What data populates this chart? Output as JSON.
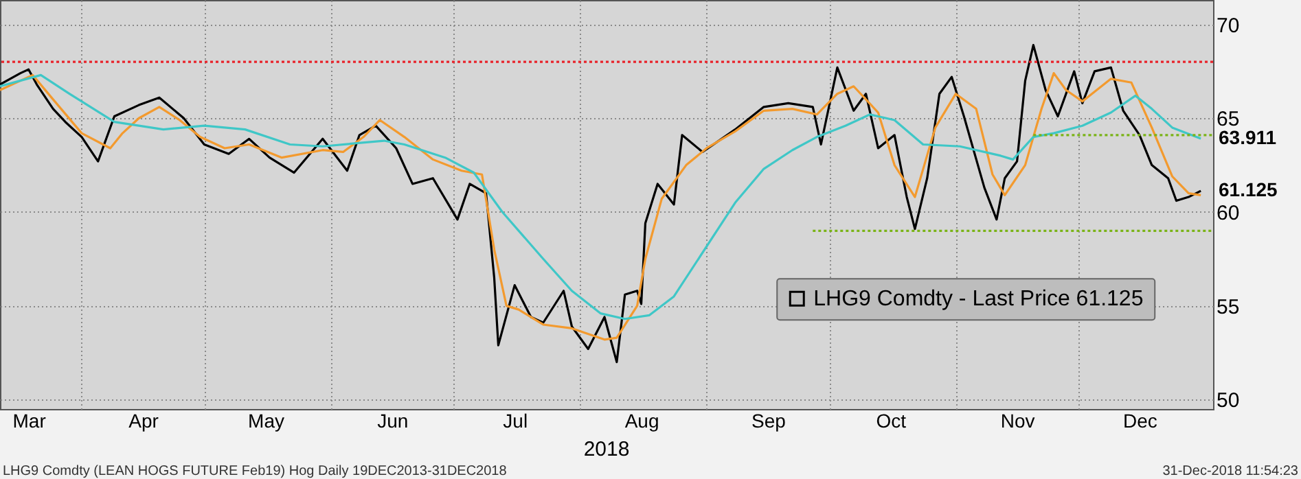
{
  "chart_data": {
    "type": "line",
    "xlabel": "2018",
    "xlim": [
      "2018-03-12",
      "2019-01-03"
    ],
    "xticks": [
      {
        "value": "2018-03-19",
        "label": "Mar"
      },
      {
        "value": "2018-04-01",
        "label": null
      },
      {
        "value": "2018-04-16",
        "label": "Apr"
      },
      {
        "value": "2018-05-01",
        "label": null
      },
      {
        "value": "2018-05-16",
        "label": "May"
      },
      {
        "value": "2018-06-01",
        "label": null
      },
      {
        "value": "2018-06-16",
        "label": "Jun"
      },
      {
        "value": "2018-07-01",
        "label": null
      },
      {
        "value": "2018-07-16",
        "label": "Jul"
      },
      {
        "value": "2018-08-01",
        "label": null
      },
      {
        "value": "2018-08-16",
        "label": "Aug"
      },
      {
        "value": "2018-09-01",
        "label": null
      },
      {
        "value": "2018-09-16",
        "label": "Sep"
      },
      {
        "value": "2018-10-01",
        "label": null
      },
      {
        "value": "2018-10-16",
        "label": "Oct"
      },
      {
        "value": "2018-11-01",
        "label": null
      },
      {
        "value": "2018-11-16",
        "label": "Nov"
      },
      {
        "value": "2018-12-01",
        "label": null
      },
      {
        "value": "2018-12-16",
        "label": "Dec"
      }
    ],
    "ylim": [
      49.5,
      71.3
    ],
    "yticks": [
      50,
      55,
      60,
      65,
      70
    ],
    "grid": true,
    "legend": "bottom right",
    "marker": "none",
    "series": [
      {
        "name": "LHG9 Comdty - Last Price 61.125",
        "color": "#000000",
        "x": [
          "2018-03-12",
          "2018-03-17",
          "2018-03-19",
          "2018-03-21",
          "2018-03-25",
          "2018-03-28",
          "2018-04-01",
          "2018-04-05",
          "2018-04-09",
          "2018-04-15",
          "2018-04-20",
          "2018-04-26",
          "2018-05-01",
          "2018-05-07",
          "2018-05-12",
          "2018-05-17",
          "2018-05-23",
          "2018-05-30",
          "2018-06-05",
          "2018-06-08",
          "2018-06-12",
          "2018-06-17",
          "2018-06-21",
          "2018-06-26",
          "2018-07-02",
          "2018-07-05",
          "2018-07-09",
          "2018-07-11",
          "2018-07-12",
          "2018-07-16",
          "2018-07-20",
          "2018-07-23",
          "2018-07-28",
          "2018-07-30",
          "2018-08-03",
          "2018-08-07",
          "2018-08-10",
          "2018-08-12",
          "2018-08-15",
          "2018-08-16",
          "2018-08-17",
          "2018-08-20",
          "2018-08-24",
          "2018-08-26",
          "2018-08-31",
          "2018-09-08",
          "2018-09-15",
          "2018-09-21",
          "2018-09-27",
          "2018-09-29",
          "2018-10-03",
          "2018-10-07",
          "2018-10-10",
          "2018-10-13",
          "2018-10-17",
          "2018-10-20",
          "2018-10-22",
          "2018-10-25",
          "2018-10-28",
          "2018-10-31",
          "2018-11-03",
          "2018-11-08",
          "2018-11-11",
          "2018-11-13",
          "2018-11-16",
          "2018-11-18",
          "2018-11-20",
          "2018-11-23",
          "2018-11-26",
          "2018-11-30",
          "2018-12-02",
          "2018-12-05",
          "2018-12-09",
          "2018-12-12",
          "2018-12-16",
          "2018-12-19",
          "2018-12-23",
          "2018-12-25",
          "2018-12-28",
          "2018-12-31"
        ],
        "values": [
          66.8,
          67.4,
          67.6,
          66.8,
          65.5,
          64.8,
          64.0,
          62.7,
          65.1,
          65.7,
          66.1,
          65.0,
          63.6,
          63.1,
          63.9,
          62.9,
          62.1,
          63.9,
          62.2,
          64.1,
          64.6,
          63.4,
          61.5,
          61.8,
          59.6,
          61.5,
          61.0,
          56.5,
          52.9,
          56.1,
          54.4,
          54.1,
          55.8,
          53.9,
          52.7,
          54.4,
          52.0,
          55.6,
          55.8,
          55.1,
          59.4,
          61.5,
          60.4,
          64.1,
          63.2,
          64.4,
          65.6,
          65.8,
          65.6,
          63.6,
          67.7,
          65.4,
          66.3,
          63.4,
          64.1,
          60.8,
          59.1,
          61.8,
          66.3,
          67.2,
          65.1,
          61.3,
          59.6,
          61.8,
          62.7,
          67.0,
          68.9,
          66.5,
          65.1,
          67.5,
          65.8,
          67.5,
          67.7,
          65.4,
          64.1,
          62.5,
          61.8,
          60.6,
          60.8,
          61.125
        ]
      },
      {
        "color": "#f39a2e",
        "x": [
          "2018-03-12",
          "2018-03-20",
          "2018-03-25",
          "2018-04-01",
          "2018-04-08",
          "2018-04-11",
          "2018-04-15",
          "2018-04-20",
          "2018-04-25",
          "2018-04-30",
          "2018-05-06",
          "2018-05-12",
          "2018-05-20",
          "2018-05-30",
          "2018-06-04",
          "2018-06-09",
          "2018-06-13",
          "2018-06-19",
          "2018-06-26",
          "2018-07-03",
          "2018-07-08",
          "2018-07-11",
          "2018-07-14",
          "2018-07-17",
          "2018-07-23",
          "2018-07-30",
          "2018-08-07",
          "2018-08-10",
          "2018-08-15",
          "2018-08-17",
          "2018-08-21",
          "2018-08-27",
          "2018-09-01",
          "2018-09-08",
          "2018-09-15",
          "2018-09-22",
          "2018-09-28",
          "2018-10-03",
          "2018-10-07",
          "2018-10-13",
          "2018-10-17",
          "2018-10-22",
          "2018-10-27",
          "2018-11-01",
          "2018-11-06",
          "2018-11-10",
          "2018-11-13",
          "2018-11-18",
          "2018-11-22",
          "2018-11-25",
          "2018-11-28",
          "2018-12-02",
          "2018-12-09",
          "2018-12-14",
          "2018-12-19",
          "2018-12-24",
          "2018-12-28",
          "2018-12-31"
        ],
        "values": [
          66.5,
          67.3,
          66.0,
          64.2,
          63.4,
          64.2,
          65.0,
          65.6,
          64.9,
          64.0,
          63.4,
          63.6,
          62.9,
          63.3,
          63.2,
          64.0,
          64.9,
          64.0,
          62.8,
          62.2,
          62.0,
          58.0,
          55.0,
          54.8,
          54.0,
          53.8,
          53.2,
          53.3,
          55.0,
          57.5,
          60.7,
          62.5,
          63.4,
          64.3,
          65.4,
          65.5,
          65.2,
          66.3,
          66.7,
          65.3,
          62.5,
          60.8,
          64.5,
          66.3,
          65.5,
          62.0,
          60.9,
          62.5,
          65.5,
          67.4,
          66.5,
          65.9,
          67.1,
          66.9,
          64.5,
          61.9,
          61.0,
          60.9
        ]
      },
      {
        "color": "#3fc7c7",
        "x": [
          "2018-03-12",
          "2018-03-22",
          "2018-03-29",
          "2018-04-09",
          "2018-04-21",
          "2018-05-01",
          "2018-05-11",
          "2018-05-22",
          "2018-05-30",
          "2018-06-14",
          "2018-06-19",
          "2018-06-29",
          "2018-07-06",
          "2018-07-13",
          "2018-07-23",
          "2018-07-30",
          "2018-08-06",
          "2018-08-12",
          "2018-08-18",
          "2018-08-24",
          "2018-08-30",
          "2018-09-08",
          "2018-09-15",
          "2018-09-22",
          "2018-09-28",
          "2018-10-05",
          "2018-10-11",
          "2018-10-17",
          "2018-10-24",
          "2018-11-02",
          "2018-11-12",
          "2018-11-15",
          "2018-11-20",
          "2018-11-25",
          "2018-12-02",
          "2018-12-09",
          "2018-12-15",
          "2018-12-19",
          "2018-12-24",
          "2018-12-31"
        ],
        "values": [
          66.7,
          67.3,
          66.3,
          64.8,
          64.4,
          64.6,
          64.4,
          63.6,
          63.5,
          63.8,
          63.6,
          62.9,
          62.1,
          60.0,
          57.5,
          55.8,
          54.6,
          54.3,
          54.5,
          55.5,
          57.5,
          60.5,
          62.3,
          63.3,
          64.0,
          64.6,
          65.2,
          64.9,
          63.6,
          63.5,
          63.0,
          62.8,
          64.0,
          64.2,
          64.6,
          65.3,
          66.2,
          65.5,
          64.5,
          63.911
        ]
      },
      {
        "color": "#7ab317",
        "line_style": "dotted",
        "x": [
          "2018-09-27",
          "2019-01-03"
        ],
        "values": [
          59.0,
          59.0
        ]
      },
      {
        "color": "#7ab317",
        "line_style": "dotted",
        "x": [
          "2018-11-20",
          "2019-01-03"
        ],
        "values": [
          64.1,
          64.1
        ]
      }
    ],
    "ref_lines": [
      {
        "axis": "y",
        "value": 68.0,
        "color": "#e8232a",
        "line_style": "dotted"
      }
    ],
    "annotations": [
      {
        "text": "63.911",
        "x": "2018-12-31",
        "y": 63.911
      },
      {
        "text": "61.125",
        "x": "2018-12-31",
        "y": 61.125
      },
      "LHG9 Comdty (LEAN HOGS FUTURE  Feb19) Hog  Daily 19DEC2013-31DEC2018",
      "31-Dec-2018 11:54:23"
    ]
  }
}
